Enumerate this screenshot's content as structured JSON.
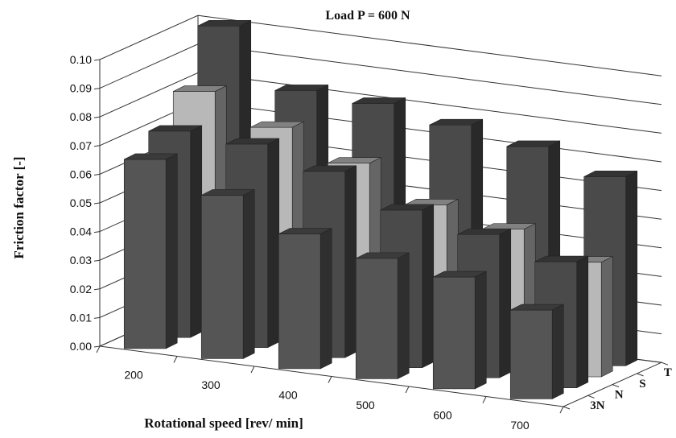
{
  "chart_data": {
    "type": "bar",
    "title": "Load P = 600 N",
    "xlabel": "Rotational speed  [rev/ min]",
    "ylabel": "Friction factor [-]",
    "ylim": [
      0,
      0.1
    ],
    "y_ticks": [
      "0.00",
      "0.01",
      "0.02",
      "0.03",
      "0.04",
      "0.05",
      "0.06",
      "0.07",
      "0.08",
      "0.09",
      "0.10"
    ],
    "categories": [
      "200",
      "300",
      "400",
      "500",
      "600",
      "700"
    ],
    "depth_categories": [
      "3N",
      "N",
      "S",
      "T"
    ],
    "grid": true,
    "series": [
      {
        "name": "3N",
        "values": [
          0.066,
          0.057,
          0.047,
          0.042,
          0.039,
          0.031
        ],
        "color": "#555555"
      },
      {
        "name": "N",
        "values": [
          0.072,
          0.071,
          0.065,
          0.055,
          0.05,
          0.044
        ],
        "color": "#4a4a4a"
      },
      {
        "name": "S",
        "values": [
          0.082,
          0.073,
          0.064,
          0.053,
          0.048,
          0.04
        ],
        "color": "#b8b8b8"
      },
      {
        "name": "T",
        "values": [
          0.101,
          0.082,
          0.081,
          0.077,
          0.073,
          0.066
        ],
        "color": "#4a4a4a"
      }
    ]
  }
}
